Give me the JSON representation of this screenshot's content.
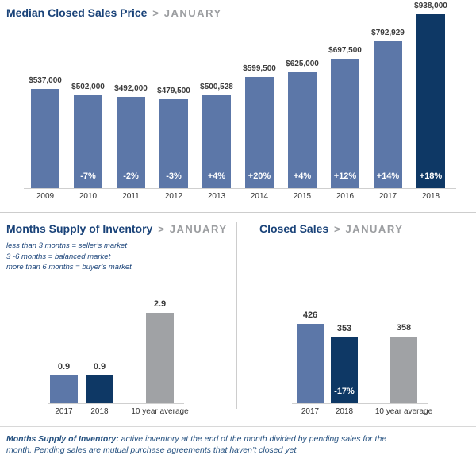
{
  "panels": {
    "median_price": {
      "title": "Median Closed Sales Price",
      "separator": ">",
      "month": "JANUARY"
    },
    "inventory": {
      "title": "Months Supply of Inventory",
      "separator": ">",
      "month": "JANUARY",
      "notes": [
        "less than 3 months = seller’s market",
        "3 -6 months = balanced market",
        "more than 6 months = buyer’s market"
      ]
    },
    "closed_sales": {
      "title": "Closed Sales",
      "separator": ">",
      "month": "JANUARY"
    }
  },
  "footer": {
    "lead": "Months Supply of Inventory:",
    "text": "active inventory at the end of the month divided by pending sales for the month. Pending sales are mutual purchase agreements that haven’t closed yet."
  },
  "colors": {
    "bar_blue": "#5c77a8",
    "bar_navy": "#0e3865",
    "bar_gray": "#a0a2a5",
    "title_blue": "#1a4379",
    "muted_gray": "#9b9da0",
    "value_label": "#3d3d3d",
    "footer_blue": "#24507f",
    "pct_label_white": "#ffffff"
  },
  "chart_data": [
    {
      "type": "bar",
      "title": "Median Closed Sales Price",
      "subtitle": "JANUARY",
      "categories": [
        "2009",
        "2010",
        "2011",
        "2012",
        "2013",
        "2014",
        "2015",
        "2016",
        "2017",
        "2018"
      ],
      "values": [
        537000,
        502000,
        492000,
        479500,
        500528,
        599500,
        625000,
        697500,
        792929,
        938000
      ],
      "value_labels": [
        "$537,000",
        "$502,000",
        "$492,000",
        "$479,500",
        "$500,528",
        "$599,500",
        "$625,000",
        "$697,500",
        "$792,929",
        "$938,000"
      ],
      "bar_labels": [
        "",
        "-7%",
        "-2%",
        "-3%",
        "+4%",
        "+20%",
        "+4%",
        "+12%",
        "+14%",
        "+18%"
      ],
      "bar_colors": [
        "blue",
        "blue",
        "blue",
        "blue",
        "blue",
        "blue",
        "blue",
        "blue",
        "blue",
        "navy"
      ],
      "highlight_category": "2018",
      "xlabel": "",
      "ylabel": "",
      "ylim": [
        0,
        938000
      ],
      "grid": false,
      "legend": "none"
    },
    {
      "type": "bar",
      "title": "Months Supply of Inventory",
      "subtitle": "JANUARY",
      "categories": [
        "2017",
        "2018",
        "10 year average"
      ],
      "values": [
        0.9,
        0.9,
        2.9
      ],
      "value_labels": [
        "0.9",
        "0.9",
        "2.9"
      ],
      "bar_labels": [
        "",
        "",
        ""
      ],
      "bar_colors": [
        "blue",
        "navy",
        "gray"
      ],
      "xlabel": "",
      "ylabel": "",
      "ylim": [
        0,
        2.9
      ],
      "grid": false,
      "legend": "none"
    },
    {
      "type": "bar",
      "title": "Closed Sales",
      "subtitle": "JANUARY",
      "categories": [
        "2017",
        "2018",
        "10 year average"
      ],
      "values": [
        426,
        353,
        358
      ],
      "value_labels": [
        "426",
        "353",
        "358"
      ],
      "bar_labels": [
        "",
        "-17%",
        ""
      ],
      "bar_colors": [
        "blue",
        "navy",
        "gray"
      ],
      "xlabel": "",
      "ylabel": "",
      "ylim": [
        0,
        426
      ],
      "grid": false,
      "legend": "none"
    }
  ]
}
